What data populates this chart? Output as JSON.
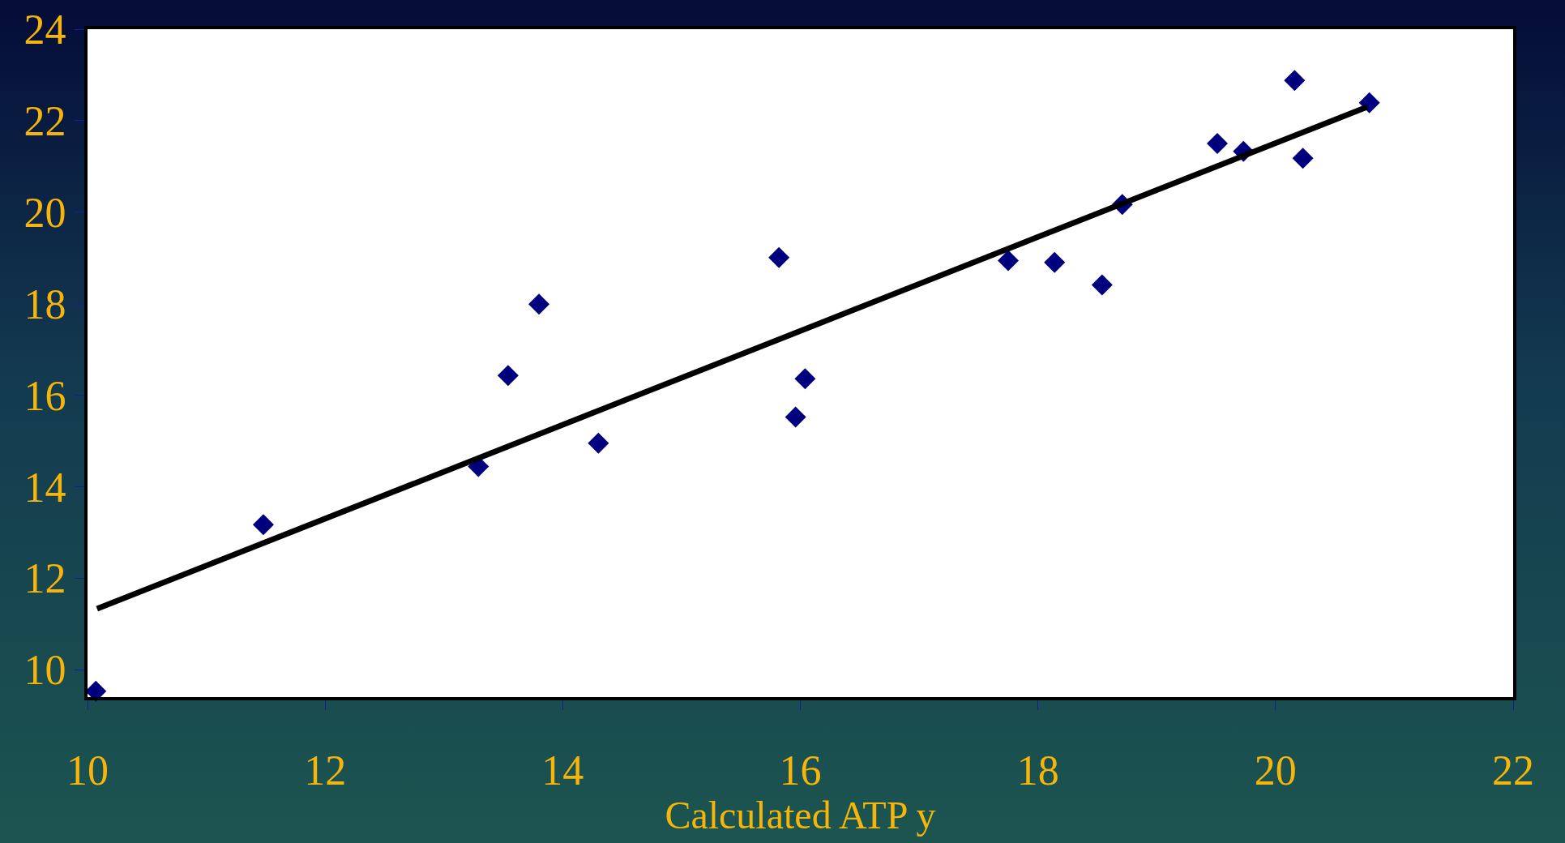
{
  "chart_data": {
    "type": "scatter",
    "xlabel": "Calculated ATP y",
    "xlim": [
      10,
      22
    ],
    "xticks": [
      10,
      12,
      14,
      16,
      18,
      20,
      22
    ],
    "ylim": [
      9.4,
      24
    ],
    "yticks": [
      10,
      12,
      14,
      16,
      18,
      20,
      22,
      24
    ],
    "grid": false,
    "marker": "diamond",
    "series": [
      {
        "color": "#00007f",
        "x": [
          10.07,
          11.48,
          13.29,
          13.54,
          13.8,
          14.3,
          15.82,
          15.96,
          16.04,
          17.75,
          18.14,
          18.54,
          18.71,
          19.51,
          19.73,
          20.16,
          20.23,
          20.79
        ],
        "values": [
          9.53,
          13.17,
          14.44,
          16.43,
          17.99,
          14.95,
          19.01,
          15.52,
          16.36,
          18.94,
          18.9,
          18.41,
          20.17,
          21.5,
          21.33,
          22.88,
          21.18,
          22.39
        ]
      },
      {
        "type": "line",
        "marker": "none",
        "color": "#000000",
        "line_style": "solid",
        "x": [
          10.08,
          20.77
        ],
        "values": [
          11.33,
          22.3
        ]
      }
    ]
  }
}
